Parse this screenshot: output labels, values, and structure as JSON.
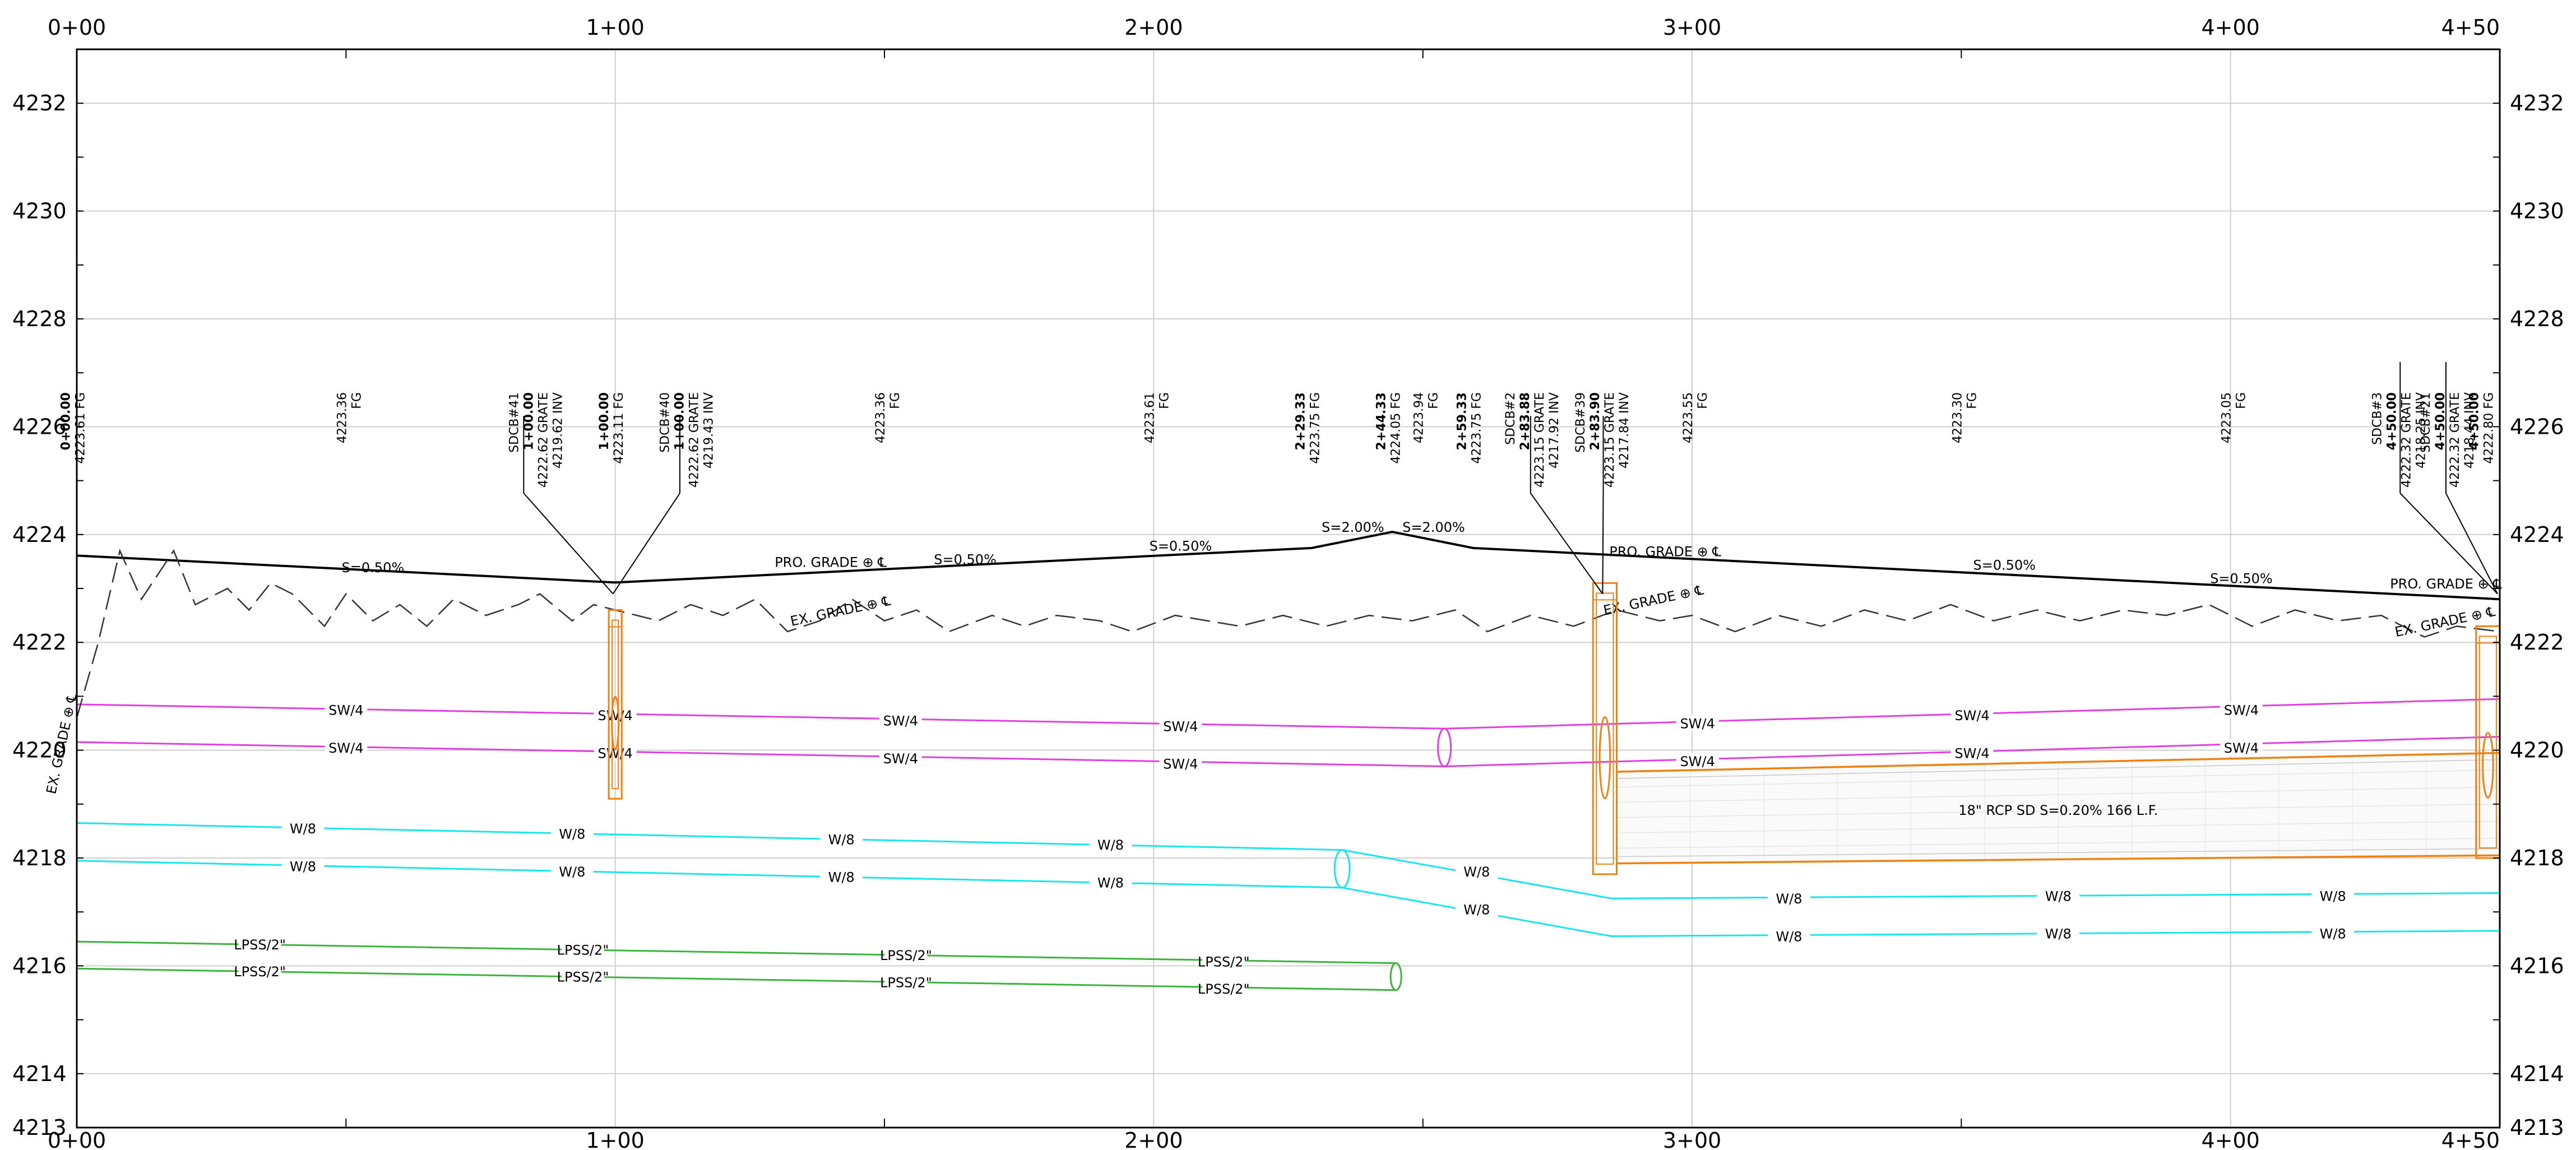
{
  "colors": {
    "background": "#ffffff",
    "grid": "#cfcfcf",
    "border": "#000000",
    "proposed_grade": "#000000",
    "existing_grade": "#333333",
    "sewer": "#e040e0",
    "water": "#18e6ec",
    "lpss": "#3cb43c",
    "storm": "#f08010"
  },
  "chart_data": {
    "type": "profile",
    "title": "",
    "xlabel": "",
    "ylabel": "",
    "xlim": [
      0,
      450
    ],
    "ylim": [
      4213,
      4233
    ],
    "grid": true,
    "x_ticks": [
      {
        "v": 0,
        "label": "0+00"
      },
      {
        "v": 100,
        "label": "1+00"
      },
      {
        "v": 200,
        "label": "2+00"
      },
      {
        "v": 300,
        "label": "3+00"
      },
      {
        "v": 400,
        "label": "4+00"
      },
      {
        "v": 450,
        "label": "4+50"
      }
    ],
    "y_ticks": [
      {
        "v": 4213,
        "label": "4213"
      },
      {
        "v": 4214,
        "label": "4214"
      },
      {
        "v": 4216,
        "label": "4216"
      },
      {
        "v": 4218,
        "label": "4218"
      },
      {
        "v": 4220,
        "label": "4220"
      },
      {
        "v": 4222,
        "label": "4222"
      },
      {
        "v": 4224,
        "label": "4224"
      },
      {
        "v": 4226,
        "label": "4226"
      },
      {
        "v": 4228,
        "label": "4228"
      },
      {
        "v": 4230,
        "label": "4230"
      },
      {
        "v": 4232,
        "label": "4232"
      }
    ],
    "proposed_grade": {
      "points": [
        [
          0,
          4223.61
        ],
        [
          100,
          4223.11
        ],
        [
          229.33,
          4223.75
        ],
        [
          244.33,
          4224.05
        ],
        [
          259.33,
          4223.75
        ],
        [
          450,
          4222.8
        ]
      ],
      "label": "PRO. GRADE",
      "slopes": [
        {
          "x": 55,
          "y": 4223.3,
          "text": "S=0.50%"
        },
        {
          "x": 165,
          "y": 4223.45,
          "text": "S=0.50%"
        },
        {
          "x": 205,
          "y": 4223.7,
          "text": "S=0.50%"
        },
        {
          "x": 237,
          "y": 4224.05,
          "text": "S=2.00%"
        },
        {
          "x": 252,
          "y": 4224.05,
          "text": "S=2.00%"
        },
        {
          "x": 358,
          "y": 4223.35,
          "text": "S=0.50%"
        },
        {
          "x": 402,
          "y": 4223.1,
          "text": "S=0.50%"
        }
      ],
      "labels_at": [
        {
          "x": 140,
          "y": 4223.4,
          "text": "PRO. GRADE"
        },
        {
          "x": 295,
          "y": 4223.6,
          "text": "PRO. GRADE"
        },
        {
          "x": 440,
          "y": 4223.0,
          "text": "PRO. GRADE"
        }
      ]
    },
    "existing_grade": {
      "points": [
        [
          0,
          4220.6
        ],
        [
          4,
          4222.0
        ],
        [
          8,
          4223.7
        ],
        [
          12,
          4222.8
        ],
        [
          18,
          4223.7
        ],
        [
          22,
          4222.7
        ],
        [
          28,
          4223.0
        ],
        [
          32,
          4222.6
        ],
        [
          36,
          4223.1
        ],
        [
          40,
          4222.9
        ],
        [
          46,
          4222.3
        ],
        [
          50,
          4222.9
        ],
        [
          55,
          4222.4
        ],
        [
          60,
          4222.7
        ],
        [
          65,
          4222.3
        ],
        [
          70,
          4222.8
        ],
        [
          76,
          4222.5
        ],
        [
          82,
          4222.7
        ],
        [
          86,
          4222.9
        ],
        [
          92,
          4222.4
        ],
        [
          96,
          4222.7
        ],
        [
          100,
          4222.6
        ],
        [
          108,
          4222.4
        ],
        [
          114,
          4222.7
        ],
        [
          120,
          4222.5
        ],
        [
          126,
          4222.8
        ],
        [
          132,
          4222.2
        ],
        [
          138,
          4222.4
        ],
        [
          144,
          4222.8
        ],
        [
          150,
          4222.4
        ],
        [
          156,
          4222.6
        ],
        [
          162,
          4222.2
        ],
        [
          170,
          4222.5
        ],
        [
          176,
          4222.3
        ],
        [
          182,
          4222.5
        ],
        [
          190,
          4222.4
        ],
        [
          196,
          4222.2
        ],
        [
          204,
          4222.5
        ],
        [
          210,
          4222.4
        ],
        [
          216,
          4222.3
        ],
        [
          224,
          4222.5
        ],
        [
          232,
          4222.3
        ],
        [
          240,
          4222.5
        ],
        [
          248,
          4222.4
        ],
        [
          256,
          4222.6
        ],
        [
          262,
          4222.2
        ],
        [
          270,
          4222.5
        ],
        [
          278,
          4222.3
        ],
        [
          286,
          4222.6
        ],
        [
          294,
          4222.4
        ],
        [
          300,
          4222.5
        ],
        [
          308,
          4222.2
        ],
        [
          316,
          4222.5
        ],
        [
          324,
          4222.3
        ],
        [
          332,
          4222.6
        ],
        [
          340,
          4222.4
        ],
        [
          348,
          4222.7
        ],
        [
          356,
          4222.4
        ],
        [
          364,
          4222.6
        ],
        [
          372,
          4222.4
        ],
        [
          380,
          4222.6
        ],
        [
          388,
          4222.5
        ],
        [
          396,
          4222.7
        ],
        [
          404,
          4222.3
        ],
        [
          412,
          4222.6
        ],
        [
          420,
          4222.4
        ],
        [
          428,
          4222.5
        ],
        [
          436,
          4222.1
        ],
        [
          442,
          4222.3
        ],
        [
          450,
          4222.2
        ]
      ],
      "labels_at": [
        {
          "x": -2,
          "y": 4220.1,
          "text": "EX. GRADE"
        },
        {
          "x": 142,
          "y": 4222.5,
          "text": "EX. GRADE"
        },
        {
          "x": 293,
          "y": 4222.7,
          "text": "EX. GRADE"
        },
        {
          "x": 440,
          "y": 4222.3,
          "text": "EX. GRADE"
        }
      ]
    },
    "series": [
      {
        "name": "SW/4",
        "kind": "sewer",
        "points": [
          [
            0,
            4220.85
          ],
          [
            254,
            4220.4
          ],
          [
            450,
            4220.95
          ]
        ],
        "labels": [
          [
            50,
            4220.75
          ],
          [
            100,
            4220.65
          ],
          [
            153,
            4220.55
          ],
          [
            205,
            4220.45
          ],
          [
            301,
            4220.5
          ],
          [
            352,
            4220.65
          ],
          [
            402,
            4220.75
          ]
        ]
      },
      {
        "name": "SW/4",
        "kind": "sewer",
        "points": [
          [
            0,
            4220.15
          ],
          [
            254,
            4219.7
          ],
          [
            450,
            4220.25
          ]
        ],
        "labels": [
          [
            50,
            4220.05
          ],
          [
            100,
            4219.95
          ],
          [
            153,
            4219.85
          ],
          [
            205,
            4219.75
          ],
          [
            301,
            4219.8
          ],
          [
            352,
            4219.95
          ],
          [
            402,
            4220.05
          ]
        ]
      },
      {
        "name": "W/8",
        "kind": "water",
        "points": [
          [
            0,
            4218.65
          ],
          [
            235,
            4218.15
          ],
          [
            285,
            4217.25
          ],
          [
            450,
            4217.35
          ]
        ],
        "labels": [
          [
            42,
            4218.55
          ],
          [
            92,
            4218.45
          ],
          [
            142,
            4218.35
          ],
          [
            192,
            4218.25
          ],
          [
            260,
            4217.75
          ],
          [
            318,
            4217.25
          ],
          [
            368,
            4217.3
          ],
          [
            419,
            4217.3
          ]
        ]
      },
      {
        "name": "W/8",
        "kind": "water",
        "points": [
          [
            0,
            4217.95
          ],
          [
            235,
            4217.45
          ],
          [
            285,
            4216.55
          ],
          [
            450,
            4216.65
          ]
        ],
        "labels": [
          [
            42,
            4217.85
          ],
          [
            92,
            4217.75
          ],
          [
            142,
            4217.65
          ],
          [
            192,
            4217.55
          ],
          [
            260,
            4217.05
          ],
          [
            318,
            4216.55
          ],
          [
            368,
            4216.6
          ],
          [
            419,
            4216.6
          ]
        ]
      },
      {
        "name": "LPSS/2\"",
        "kind": "lpss",
        "points": [
          [
            0,
            4216.45
          ],
          [
            245,
            4216.05
          ]
        ],
        "labels": [
          [
            34,
            4216.4
          ],
          [
            94,
            4216.3
          ],
          [
            154,
            4216.2
          ],
          [
            213,
            4216.08
          ]
        ]
      },
      {
        "name": "LPSS/2\"",
        "kind": "lpss",
        "points": [
          [
            0,
            4215.95
          ],
          [
            245,
            4215.55
          ]
        ],
        "labels": [
          [
            34,
            4215.9
          ],
          [
            94,
            4215.8
          ],
          [
            154,
            4215.7
          ],
          [
            213,
            4215.58
          ]
        ]
      }
    ],
    "pipe_end_ellipses": [
      {
        "x": 254,
        "y": 4220.05,
        "rx": 1.2,
        "ry": 0.35,
        "kind": "sewer"
      },
      {
        "x": 235,
        "y": 4217.8,
        "rx": 1.4,
        "ry": 0.35,
        "kind": "water"
      },
      {
        "x": 245,
        "y": 4215.8,
        "rx": 1.0,
        "ry": 0.25,
        "kind": "lpss"
      }
    ],
    "storm_pipe": {
      "label": "18\" RCP SD S=0.20% 166 L.F.",
      "x1": 286,
      "x2": 450,
      "top1": 4219.6,
      "bot1": 4217.9,
      "top2": 4219.95,
      "bot2": 4218.05
    },
    "structures": [
      {
        "id": "SDCB#40/41",
        "x": 100,
        "top": 4222.6,
        "bottom": 4219.1,
        "w": 2.4
      },
      {
        "id": "SDCB#2/39",
        "x": 283.8,
        "top": 4223.1,
        "bottom": 4217.7,
        "w": 4.4
      },
      {
        "id": "SDCB#3/21",
        "x": 450,
        "top": 4222.3,
        "bottom": 4218.0,
        "w": 4.4
      }
    ],
    "annotations": [
      {
        "x": -1.3,
        "lines": [
          {
            "text": "0+00.00",
            "bold": true
          },
          {
            "text": "4223.61 FG",
            "bold": false
          }
        ],
        "leader": null
      },
      {
        "x": 50,
        "lines": [
          {
            "text": "4223.36",
            "bold": false
          },
          {
            "text": "FG",
            "bold": false
          }
        ],
        "leader": null
      },
      {
        "x": 82,
        "lines": [
          {
            "text": "SDCB#41",
            "bold": false
          },
          {
            "text": "1+00.00",
            "bold": true
          },
          {
            "text": "4222.62 GRATE",
            "bold": false
          },
          {
            "text": "4219.62 INV",
            "bold": false
          }
        ],
        "leader": {
          "x": 83,
          "y": 4226.2
        }
      },
      {
        "x": 98.7,
        "lines": [
          {
            "text": "1+00.00",
            "bold": true
          },
          {
            "text": "4223.11 FG",
            "bold": false
          }
        ],
        "leader": null
      },
      {
        "x": 110,
        "lines": [
          {
            "text": "SDCB#40",
            "bold": false
          },
          {
            "text": "1+00.00",
            "bold": true
          },
          {
            "text": "4222.62 GRATE",
            "bold": false
          },
          {
            "text": "4219.43 INV",
            "bold": false
          }
        ],
        "leader": {
          "x": 112,
          "y": 4226.2
        }
      },
      {
        "x": 150,
        "lines": [
          {
            "text": "4223.36",
            "bold": false
          },
          {
            "text": "FG",
            "bold": false
          }
        ],
        "leader": null
      },
      {
        "x": 200,
        "lines": [
          {
            "text": "4223.61",
            "bold": false
          },
          {
            "text": "FG",
            "bold": false
          }
        ],
        "leader": null
      },
      {
        "x": 228,
        "lines": [
          {
            "text": "2+29.33",
            "bold": true
          },
          {
            "text": "4223.75 FG",
            "bold": false
          }
        ],
        "leader": null
      },
      {
        "x": 243,
        "lines": [
          {
            "text": "2+44.33",
            "bold": true
          },
          {
            "text": "4224.05 FG",
            "bold": false
          }
        ],
        "leader": null
      },
      {
        "x": 250,
        "lines": [
          {
            "text": "4223.94",
            "bold": false
          },
          {
            "text": "FG",
            "bold": false
          }
        ],
        "leader": null
      },
      {
        "x": 258,
        "lines": [
          {
            "text": "2+59.33",
            "bold": true
          },
          {
            "text": "4223.75 FG",
            "bold": false
          }
        ],
        "leader": null
      },
      {
        "x": 267,
        "lines": [
          {
            "text": "SDCB#2",
            "bold": false
          },
          {
            "text": "2+83.88",
            "bold": true
          },
          {
            "text": "4223.15 GRATE",
            "bold": false
          },
          {
            "text": "4217.92 INV",
            "bold": false
          }
        ],
        "leader": {
          "x": 270,
          "y": 4226.2
        }
      },
      {
        "x": 280,
        "lines": [
          {
            "text": "SDCB#39",
            "bold": false
          },
          {
            "text": "2+83.90",
            "bold": true
          },
          {
            "text": "4223.15 GRATE",
            "bold": false
          },
          {
            "text": "4217.84 INV",
            "bold": false
          }
        ],
        "leader": {
          "x": 283.5,
          "y": 4226.2
        }
      },
      {
        "x": 300,
        "lines": [
          {
            "text": "4223.55",
            "bold": false
          },
          {
            "text": "FG",
            "bold": false
          }
        ],
        "leader": null
      },
      {
        "x": 350,
        "lines": [
          {
            "text": "4223.30",
            "bold": false
          },
          {
            "text": "FG",
            "bold": false
          }
        ],
        "leader": null
      },
      {
        "x": 400,
        "lines": [
          {
            "text": "4223.05",
            "bold": false
          },
          {
            "text": "FG",
            "bold": false
          }
        ],
        "leader": null
      },
      {
        "x": 428,
        "lines": [
          {
            "text": "SDCB#3",
            "bold": false
          },
          {
            "text": "4+50.00",
            "bold": true
          },
          {
            "text": "4222.32 GRATE",
            "bold": false
          },
          {
            "text": "4218.25 INV",
            "bold": false
          }
        ],
        "leader": {
          "x": 431.5,
          "y": 4227.2
        }
      },
      {
        "x": 437,
        "lines": [
          {
            "text": "SDCB#21",
            "bold": false
          },
          {
            "text": "4+50.00",
            "bold": true
          },
          {
            "text": "4222.32 GRATE",
            "bold": false
          },
          {
            "text": "4218.44 INV",
            "bold": false
          }
        ],
        "leader": {
          "x": 440,
          "y": 4227.2
        }
      },
      {
        "x": 446,
        "lines": [
          {
            "text": "4+50.00",
            "bold": true
          },
          {
            "text": "4222.80 FG",
            "bold": false
          }
        ],
        "leader": null
      }
    ]
  }
}
